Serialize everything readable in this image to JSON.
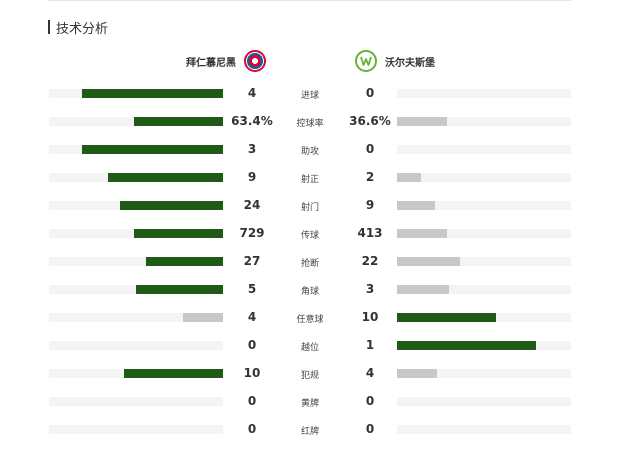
{
  "section_title": "技术分析",
  "home_team": {
    "name": "拜仁慕尼黑",
    "logo_icon": "bayern-crest-icon",
    "color": "#dc052d"
  },
  "away_team": {
    "name": "沃尔夫斯堡",
    "logo_icon": "wolfsburg-crest-icon",
    "color": "#65b32e"
  },
  "colors": {
    "leader_bar": "#1f5a16",
    "trailer_bar": "#c8c8c8",
    "track": "#f4f4f4"
  },
  "stats": [
    {
      "label": "进球",
      "home": "4",
      "away": "0",
      "home_share": 0.81,
      "away_share": 0.0
    },
    {
      "label": "控球率",
      "home": "63.4%",
      "away": "36.6%",
      "home_share": 0.51,
      "away_share": 0.29
    },
    {
      "label": "助攻",
      "home": "3",
      "away": "0",
      "home_share": 0.81,
      "away_share": 0.0
    },
    {
      "label": "射正",
      "home": "9",
      "away": "2",
      "home_share": 0.66,
      "away_share": 0.14
    },
    {
      "label": "射门",
      "home": "24",
      "away": "9",
      "home_share": 0.59,
      "away_share": 0.22
    },
    {
      "label": "传球",
      "home": "729",
      "away": "413",
      "home_share": 0.51,
      "away_share": 0.29
    },
    {
      "label": "抢断",
      "home": "27",
      "away": "22",
      "home_share": 0.44,
      "away_share": 0.36
    },
    {
      "label": "角球",
      "home": "5",
      "away": "3",
      "home_share": 0.5,
      "away_share": 0.3
    },
    {
      "label": "任意球",
      "home": "4",
      "away": "10",
      "home_share": 0.23,
      "away_share": 0.57
    },
    {
      "label": "越位",
      "home": "0",
      "away": "1",
      "home_share": 0.0,
      "away_share": 0.8
    },
    {
      "label": "犯规",
      "home": "10",
      "away": "4",
      "home_share": 0.57,
      "away_share": 0.23
    },
    {
      "label": "黄牌",
      "home": "0",
      "away": "0",
      "home_share": 0.0,
      "away_share": 0.0
    },
    {
      "label": "红牌",
      "home": "0",
      "away": "0",
      "home_share": 0.0,
      "away_share": 0.0
    }
  ]
}
